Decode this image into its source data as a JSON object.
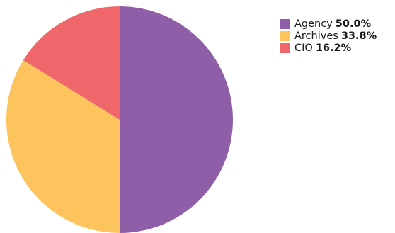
{
  "chart_data": {
    "type": "pie",
    "title": "",
    "start_angle_deg": 0,
    "direction": "clockwise",
    "legend_position": "top-right",
    "slices": [
      {
        "label": "Agency",
        "value": 50.0,
        "display": "50.0%",
        "color": "#8e5ea8"
      },
      {
        "label": "Archives",
        "value": 33.8,
        "display": "33.8%",
        "color": "#fdc35c"
      },
      {
        "label": "CIO",
        "value": 16.2,
        "display": "16.2%",
        "color": "#f0676b"
      }
    ]
  }
}
